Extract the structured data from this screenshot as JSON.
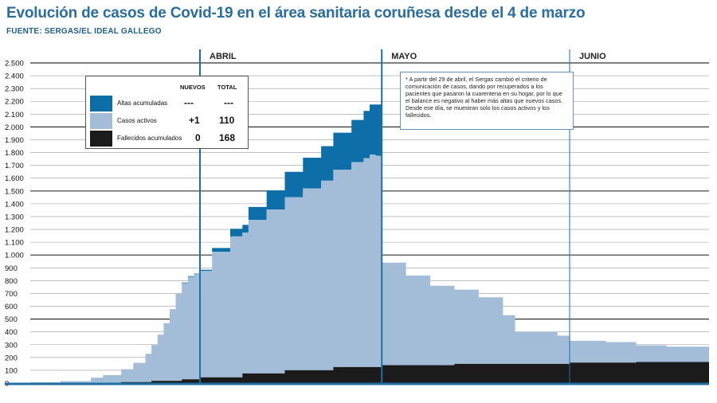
{
  "header": {
    "title": "Evolución de casos de Covid-19 en el área sanitaria coruñesa desde el 4 de marzo",
    "source": "FUENTE: SERGAS/EL IDEAL GALLEGO"
  },
  "legend": {
    "col_new": "NUEVOS",
    "col_total": "TOTAL",
    "rows": [
      {
        "label": "Altas acumuladas",
        "nuevos": "---",
        "total": "---",
        "color": "#0e6ea8"
      },
      {
        "label": "Casos activos",
        "nuevos": "+1",
        "total": "110",
        "color": "#a3bdd8"
      },
      {
        "label": "Fallecidos acumulados",
        "nuevos": "0",
        "total": "168",
        "color": "#1b1b1b"
      }
    ]
  },
  "note": "* A partir del 29 de abril, el Sergas cambió el criterio de comunicación de casos, dando por recuperados a los pacientes que pasaron la cuarentena en su hogar, por lo que el balance es negativo al haber más altas que nuevos casos. Desde ese día, se muestran solo los casos activos y los fallecidos.",
  "colors": {
    "altas": "#0e6ea8",
    "activos": "#a3bdd8",
    "fallecidos": "#1b1b1b",
    "divider": "#1f6fa5"
  },
  "chart_data": {
    "type": "area",
    "stacking": "stacked",
    "x_unit": "días desde el 4 de marzo",
    "x_range": [
      0,
      112
    ],
    "ylim": [
      0,
      2500
    ],
    "yticks": [
      0,
      100,
      200,
      300,
      400,
      500,
      600,
      700,
      800,
      900,
      "1.000",
      "1.100",
      "1.200",
      "1.300",
      "1.400",
      "1.500",
      "1.600",
      "1.700",
      "1.800",
      "1.900",
      "2.000",
      "2.100",
      "2.200",
      "2.300",
      "2.400",
      "2.500"
    ],
    "month_markers": [
      {
        "label": "ABRIL",
        "day": 28
      },
      {
        "label": "MAYO",
        "day": 58
      },
      {
        "label": "JUNIO",
        "day": 89
      }
    ],
    "series": [
      {
        "name": "Fallecidos acumulados",
        "color": "#1b1b1b",
        "x": [
          0,
          5,
          10,
          15,
          20,
          25,
          28,
          35,
          42,
          50,
          58,
          70,
          89,
          100,
          112
        ],
        "values": [
          0,
          0,
          2,
          8,
          18,
          30,
          45,
          75,
          100,
          125,
          140,
          150,
          160,
          165,
          168
        ]
      },
      {
        "name": "Casos activos",
        "color": "#a3bdd8",
        "x": [
          0,
          5,
          10,
          12,
          15,
          17,
          19,
          20,
          21,
          22,
          23,
          24,
          25,
          26,
          27,
          28,
          30,
          33,
          36,
          39,
          42,
          45,
          48,
          50,
          53,
          55,
          56,
          57,
          58,
          62,
          66,
          70,
          74,
          78,
          80,
          83,
          87,
          89,
          95,
          100,
          105,
          112
        ],
        "values": [
          5,
          15,
          40,
          60,
          100,
          150,
          220,
          280,
          360,
          450,
          560,
          680,
          750,
          800,
          820,
          830,
          980,
          1100,
          1200,
          1280,
          1350,
          1420,
          1480,
          1540,
          1600,
          1630,
          1660,
          1650,
          800,
          700,
          620,
          580,
          520,
          380,
          250,
          250,
          220,
          170,
          160,
          130,
          120,
          110
        ]
      },
      {
        "name": "Altas acumuladas",
        "color": "#0e6ea8",
        "x": [
          0,
          20,
          25,
          28,
          30,
          33,
          36,
          39,
          42,
          45,
          48,
          50,
          53,
          55,
          56,
          57,
          58
        ],
        "values": [
          0,
          0,
          5,
          10,
          30,
          60,
          100,
          150,
          200,
          240,
          270,
          290,
          330,
          370,
          390,
          400,
          0
        ]
      }
    ]
  }
}
